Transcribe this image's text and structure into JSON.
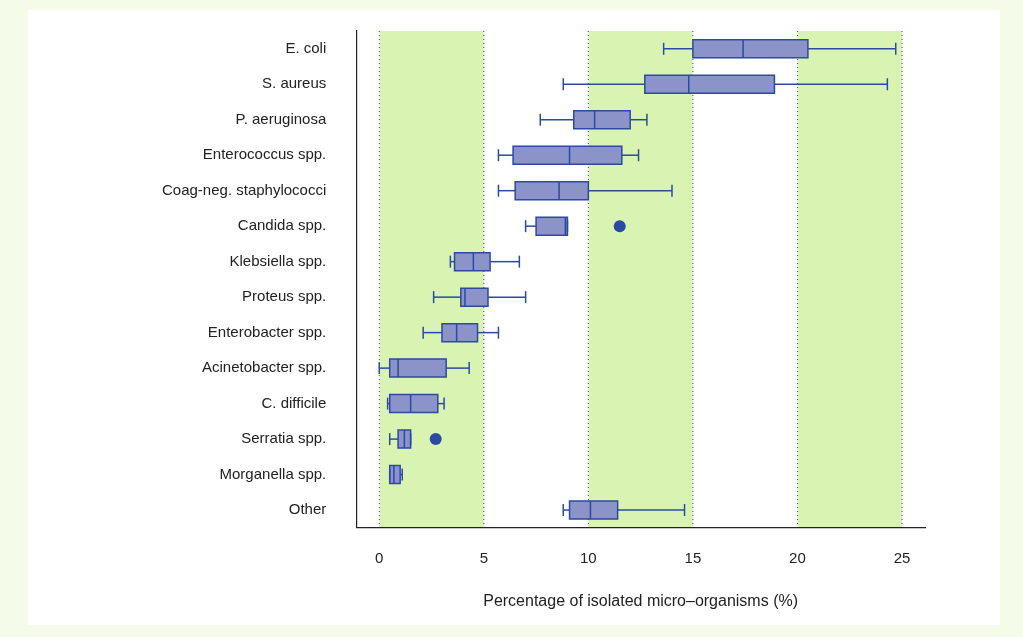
{
  "chart_data": {
    "type": "box",
    "orientation": "horizontal",
    "xlabel": "Percentage of isolated micro–organisms (%)",
    "categories": [
      "E. coli",
      "S. aureus",
      "P. aeruginosa",
      "Enterococcus spp.",
      "Coag-neg. staphylococci",
      "Candida spp.",
      "Klebsiella spp.",
      "Proteus spp.",
      "Enterobacter spp.",
      "Acinetobacter spp.",
      "C. difficile",
      "Serratia spp.",
      "Morganella spp.",
      "Other"
    ],
    "color": "#8c93c8",
    "boxes": [
      {
        "low": 13.6,
        "q1": 15,
        "median": 17.4,
        "q3": 20.5,
        "high": 24.7
      },
      {
        "low": 8.8,
        "q1": 12.7,
        "median": 14.8,
        "q3": 18.9,
        "high": 24.3
      },
      {
        "low": 7.7,
        "q1": 9.3,
        "median": 10.3,
        "q3": 12,
        "high": 12.8
      },
      {
        "low": 5.7,
        "q1": 6.4,
        "median": 9.1,
        "q3": 11.6,
        "high": 12.4
      },
      {
        "low": 5.7,
        "q1": 6.5,
        "median": 8.6,
        "q3": 10,
        "high": 14
      },
      {
        "low": 7,
        "q1": 7.5,
        "median": 8.9,
        "q3": 9,
        "high": 9,
        "outliers": [
          11.5
        ]
      },
      {
        "low": 3.4,
        "q1": 3.6,
        "median": 4.5,
        "q3": 5.3,
        "high": 6.7
      },
      {
        "low": 2.6,
        "q1": 3.9,
        "median": 4.1,
        "q3": 5.2,
        "high": 7
      },
      {
        "low": 2.1,
        "q1": 3,
        "median": 3.7,
        "q3": 4.7,
        "high": 5.7
      },
      {
        "low": 0,
        "q1": 0.5,
        "median": 0.9,
        "q3": 3.2,
        "high": 4.3
      },
      {
        "low": 0.4,
        "q1": 0.5,
        "median": 1.5,
        "q3": 2.8,
        "high": 3.1
      },
      {
        "low": 0.5,
        "q1": 0.9,
        "median": 1.2,
        "q3": 1.5,
        "high": 1.5,
        "outliers": [
          2.7
        ]
      },
      {
        "low": 0.5,
        "q1": 0.5,
        "median": 0.7,
        "q3": 1,
        "high": 1.1
      },
      {
        "low": 8.8,
        "q1": 9.1,
        "median": 10.1,
        "q3": 11.4,
        "high": 14.6
      }
    ],
    "xlim": [
      -1.1,
      26.1
    ],
    "xticks": [
      0,
      5,
      10,
      15,
      20,
      25
    ],
    "grid": "x",
    "bands": [
      {
        "axis": "x",
        "from": 0,
        "to": 5,
        "color": "#d9f3b3"
      },
      {
        "axis": "x",
        "from": 10,
        "to": 15,
        "color": "#d9f3b3"
      },
      {
        "axis": "x",
        "from": 20,
        "to": 25,
        "color": "#d9f3b3"
      }
    ]
  }
}
